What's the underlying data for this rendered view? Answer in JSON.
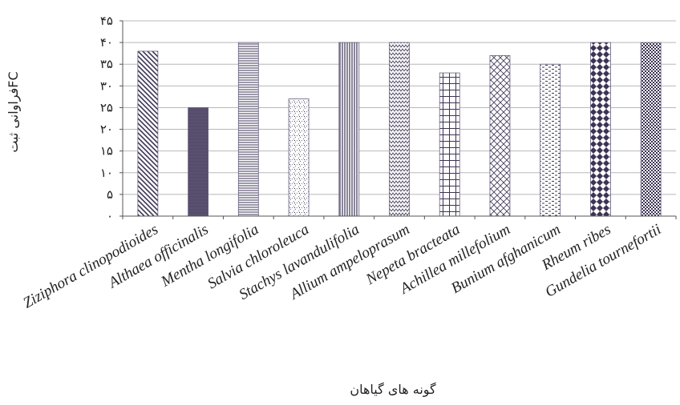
{
  "chart_data": {
    "type": "bar",
    "title": "",
    "xlabel": "گونه های گیاهان",
    "ylabel": "فراوانی ثبتFC",
    "ylim": [
      0,
      45
    ],
    "yticks": [
      0,
      5,
      10,
      15,
      20,
      25,
      30,
      35,
      40,
      45
    ],
    "ytick_labels": [
      "۰",
      "۵",
      "۱۰",
      "۱۵",
      "۲۰",
      "۲۵",
      "۳۰",
      "۳۵",
      "۴۰",
      "۴۵"
    ],
    "grid": true,
    "legend": "none",
    "categories": [
      "Ziziphora clinopodioides",
      "Althaea officinalis",
      "Mentha longifolia",
      "Salvia chloroleuca",
      "Stachys lavandulifolia",
      "Allium ampeloprasum",
      "Nepeta bracteata",
      "Achillea millefolium",
      "Bunium afghanicum",
      "Rheum ribes",
      "Gundelia tournefortii"
    ],
    "values": [
      38,
      25,
      40,
      27,
      40,
      40,
      33,
      37,
      35,
      40,
      40
    ],
    "patterns": [
      "diag-down",
      "solid",
      "hlines",
      "dots",
      "vlines",
      "zigzag",
      "grid",
      "diag-cross",
      "dashes",
      "diamonds",
      "checker"
    ],
    "colors": {
      "bar": "#3d3454",
      "grid": "#b8b8b8",
      "axis": "#555555"
    }
  }
}
